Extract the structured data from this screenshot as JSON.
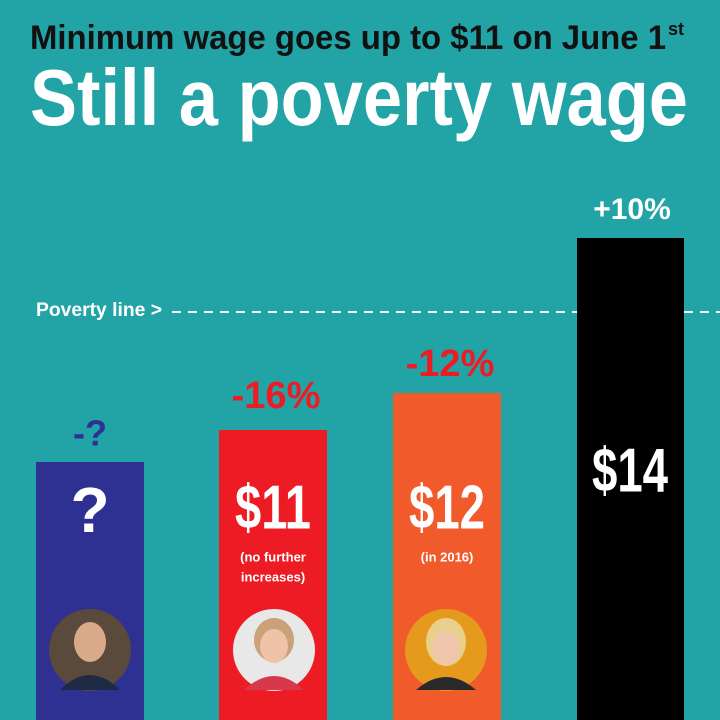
{
  "header": {
    "subtitle": "Minimum wage goes up to $11 on June 1",
    "subtitle_sup": "st",
    "title": "Still a poverty wage"
  },
  "poverty_line": "Poverty line >",
  "bars": [
    {
      "change": "-?",
      "amount": "?",
      "note": []
    },
    {
      "change": "-16%",
      "amount": "$11",
      "note": [
        "(no further",
        "increases)"
      ]
    },
    {
      "change": "-12%",
      "amount": "$12",
      "note": [
        "(in 2016)"
      ]
    },
    {
      "change": "+10%",
      "amount": "$14",
      "note": []
    }
  ]
}
